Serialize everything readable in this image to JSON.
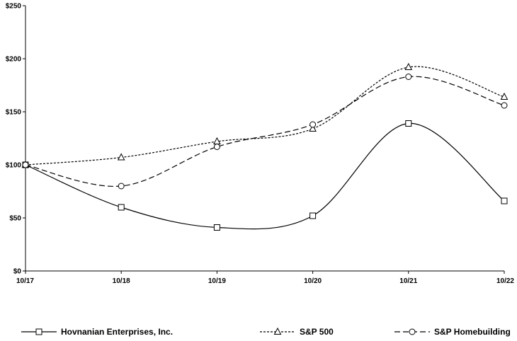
{
  "chart_data": {
    "type": "line",
    "title": "",
    "xlabel": "",
    "ylabel": "",
    "categories": [
      "10/17",
      "10/18",
      "10/19",
      "10/20",
      "10/21",
      "10/22"
    ],
    "y_ticks": [
      "$0",
      "$50",
      "$100",
      "$150",
      "$200",
      "$250"
    ],
    "ylim": [
      0,
      250
    ],
    "grid": false,
    "legend_position": "bottom",
    "series": [
      {
        "name": "Hovnanian Enterprises, Inc.",
        "values": [
          100,
          60,
          41,
          52,
          139,
          66
        ],
        "marker": "square",
        "dash": "solid",
        "color": "#000000"
      },
      {
        "name": "S&P 500",
        "values": [
          100,
          107,
          122,
          134,
          192,
          164
        ],
        "marker": "triangle",
        "dash": "dotted",
        "color": "#000000"
      },
      {
        "name": "S&P Homebuilding",
        "values": [
          100,
          80,
          117,
          138,
          183,
          156
        ],
        "marker": "circle",
        "dash": "dashed",
        "color": "#000000"
      }
    ]
  }
}
